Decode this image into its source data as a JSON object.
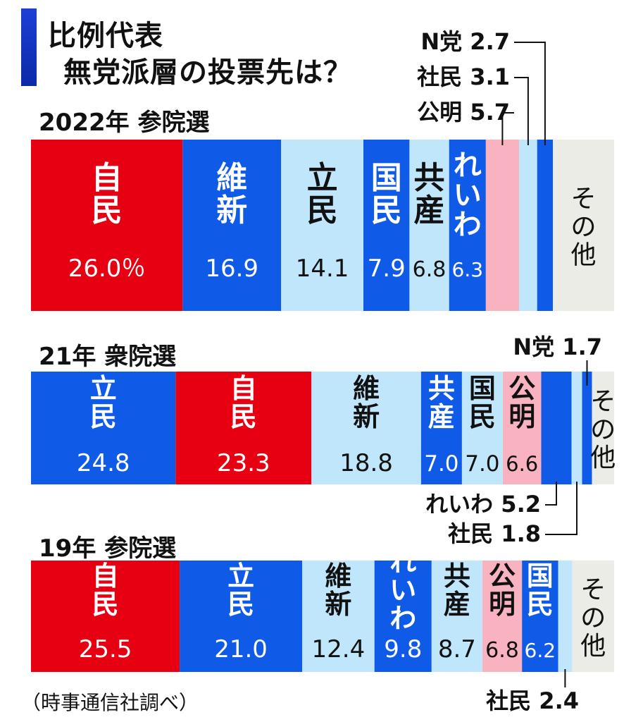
{
  "title": {
    "line1": "比例代表",
    "line2": "無党派層の投票先は？"
  },
  "source": "（時事通信社調べ）",
  "colors": {
    "red": "#e60012",
    "blue": "#0f5ae6",
    "light": "#bfe6fb",
    "pink": "#f9b3c0",
    "gray": "#ecece6",
    "white": "#ffffff",
    "dark": "#111111"
  },
  "chart_data": [
    {
      "type": "bar",
      "title": "2022年 参院選",
      "unit": "%",
      "segments": [
        {
          "name": "自民",
          "value": 26.0,
          "value_label": "26.0％",
          "color": "red",
          "text": "white"
        },
        {
          "name": "維新",
          "value": 16.9,
          "value_label": "16.9",
          "color": "blue",
          "text": "white"
        },
        {
          "name": "立民",
          "value": 14.1,
          "value_label": "14.1",
          "color": "light",
          "text": "dark"
        },
        {
          "name": "国民",
          "value": 7.9,
          "value_label": "7.9",
          "color": "blue",
          "text": "white"
        },
        {
          "name": "共産",
          "value": 6.8,
          "value_label": "6.8",
          "color": "light",
          "text": "dark"
        },
        {
          "name": "れいわ",
          "value": 6.3,
          "value_label": "6.3",
          "color": "blue",
          "text": "white"
        },
        {
          "name": "公明",
          "value": 5.7,
          "value_label": "5.7",
          "color": "pink",
          "text": "dark",
          "callout": "公明 5.7"
        },
        {
          "name": "社民",
          "value": 3.1,
          "value_label": "3.1",
          "color": "light",
          "text": "dark",
          "callout": "社民 3.1"
        },
        {
          "name": "N党",
          "value": 2.7,
          "value_label": "2.7",
          "color": "blue",
          "text": "white",
          "callout": "N党 2.7"
        },
        {
          "name": "その他",
          "value": 10.5,
          "color": "gray",
          "text": "dark"
        }
      ]
    },
    {
      "type": "bar",
      "title": "21年 衆院選",
      "unit": "%",
      "segments": [
        {
          "name": "立民",
          "value": 24.8,
          "value_label": "24.8",
          "color": "blue",
          "text": "white"
        },
        {
          "name": "自民",
          "value": 23.3,
          "value_label": "23.3",
          "color": "red",
          "text": "white"
        },
        {
          "name": "維新",
          "value": 18.8,
          "value_label": "18.8",
          "color": "light",
          "text": "dark"
        },
        {
          "name": "共産",
          "value": 7.0,
          "value_label": "7.0",
          "color": "blue",
          "text": "white"
        },
        {
          "name": "国民",
          "value": 7.0,
          "value_label": "7.0",
          "color": "light",
          "text": "dark"
        },
        {
          "name": "公明",
          "value": 6.6,
          "value_label": "6.6",
          "color": "pink",
          "text": "dark"
        },
        {
          "name": "れいわ",
          "value": 5.2,
          "value_label": "5.2",
          "color": "blue",
          "text": "white",
          "callout": "れいわ 5.2"
        },
        {
          "name": "社民",
          "value": 1.8,
          "value_label": "1.8",
          "color": "light",
          "text": "dark",
          "callout": "社民 1.8"
        },
        {
          "name": "N党",
          "value": 1.7,
          "value_label": "1.7",
          "color": "blue",
          "text": "white",
          "callout": "N党 1.7"
        },
        {
          "name": "その他",
          "value": 3.8,
          "color": "gray",
          "text": "dark"
        }
      ]
    },
    {
      "type": "bar",
      "title": "19年 参院選",
      "unit": "%",
      "segments": [
        {
          "name": "自民",
          "value": 25.5,
          "value_label": "25.5",
          "color": "red",
          "text": "white"
        },
        {
          "name": "立民",
          "value": 21.0,
          "value_label": "21.0",
          "color": "blue",
          "text": "white"
        },
        {
          "name": "維新",
          "value": 12.4,
          "value_label": "12.4",
          "color": "light",
          "text": "dark"
        },
        {
          "name": "れいわ",
          "value": 9.8,
          "value_label": "9.8",
          "color": "blue",
          "text": "white"
        },
        {
          "name": "共産",
          "value": 8.7,
          "value_label": "8.7",
          "color": "light",
          "text": "dark"
        },
        {
          "name": "公明",
          "value": 6.8,
          "value_label": "6.8",
          "color": "pink",
          "text": "dark"
        },
        {
          "name": "国民",
          "value": 6.2,
          "value_label": "6.2",
          "color": "blue",
          "text": "white"
        },
        {
          "name": "社民",
          "value": 2.4,
          "value_label": "2.4",
          "color": "light",
          "text": "dark",
          "callout": "社民 2.4"
        },
        {
          "name": "その他",
          "value": 7.2,
          "color": "gray",
          "text": "dark"
        }
      ]
    }
  ]
}
